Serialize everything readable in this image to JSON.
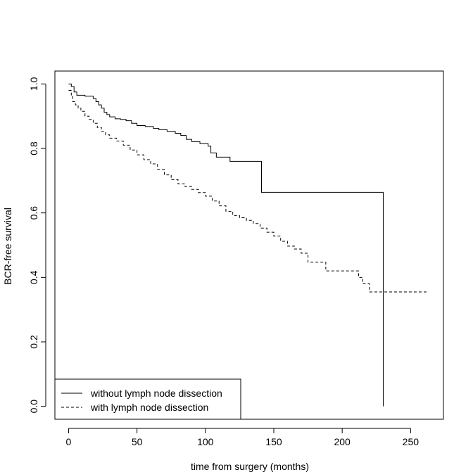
{
  "chart_data": {
    "type": "line",
    "chart_style": "step",
    "xlabel": "time from surgery (months)",
    "ylabel": "BCR-free survival",
    "xlim": [
      -10,
      274
    ],
    "ylim": [
      -0.04,
      1.04
    ],
    "x_ticks": [
      0,
      50,
      100,
      150,
      200,
      250
    ],
    "y_ticks": [
      0.0,
      0.2,
      0.4,
      0.6,
      0.8,
      1.0
    ],
    "x_tick_labels": [
      "0",
      "50",
      "100",
      "150",
      "200",
      "250"
    ],
    "y_tick_labels": [
      "0.0",
      "0.2",
      "0.4",
      "0.6",
      "0.8",
      "1.0"
    ],
    "grid": false,
    "legend_position": "bottom-left",
    "series": [
      {
        "name": "without lymph node dissection",
        "line_style": "solid",
        "points": [
          [
            0,
            1.0
          ],
          [
            2,
            0.992
          ],
          [
            4,
            0.975
          ],
          [
            6,
            0.965
          ],
          [
            12,
            0.962
          ],
          [
            18,
            0.955
          ],
          [
            20,
            0.945
          ],
          [
            22,
            0.935
          ],
          [
            24,
            0.925
          ],
          [
            26,
            0.912
          ],
          [
            28,
            0.905
          ],
          [
            30,
            0.898
          ],
          [
            34,
            0.892
          ],
          [
            38,
            0.89
          ],
          [
            42,
            0.886
          ],
          [
            46,
            0.878
          ],
          [
            50,
            0.871
          ],
          [
            56,
            0.868
          ],
          [
            62,
            0.862
          ],
          [
            66,
            0.858
          ],
          [
            72,
            0.853
          ],
          [
            78,
            0.847
          ],
          [
            82,
            0.84
          ],
          [
            86,
            0.828
          ],
          [
            90,
            0.821
          ],
          [
            96,
            0.815
          ],
          [
            102,
            0.807
          ],
          [
            104,
            0.786
          ],
          [
            108,
            0.773
          ],
          [
            118,
            0.76
          ],
          [
            141,
            0.664
          ],
          [
            230,
            0.664
          ],
          [
            230,
            0.0
          ]
        ]
      },
      {
        "name": "with lymph node dissection",
        "line_style": "dashed",
        "points": [
          [
            0,
            0.98
          ],
          [
            2,
            0.96
          ],
          [
            3,
            0.945
          ],
          [
            5,
            0.935
          ],
          [
            7,
            0.925
          ],
          [
            9,
            0.915
          ],
          [
            12,
            0.9
          ],
          [
            15,
            0.89
          ],
          [
            18,
            0.878
          ],
          [
            21,
            0.865
          ],
          [
            24,
            0.852
          ],
          [
            27,
            0.842
          ],
          [
            30,
            0.832
          ],
          [
            35,
            0.823
          ],
          [
            40,
            0.81
          ],
          [
            45,
            0.795
          ],
          [
            50,
            0.78
          ],
          [
            55,
            0.765
          ],
          [
            60,
            0.752
          ],
          [
            65,
            0.735
          ],
          [
            70,
            0.718
          ],
          [
            75,
            0.703
          ],
          [
            80,
            0.69
          ],
          [
            85,
            0.682
          ],
          [
            90,
            0.673
          ],
          [
            95,
            0.663
          ],
          [
            100,
            0.652
          ],
          [
            105,
            0.637
          ],
          [
            110,
            0.622
          ],
          [
            115,
            0.605
          ],
          [
            120,
            0.592
          ],
          [
            125,
            0.585
          ],
          [
            130,
            0.577
          ],
          [
            135,
            0.567
          ],
          [
            140,
            0.553
          ],
          [
            145,
            0.54
          ],
          [
            150,
            0.528
          ],
          [
            155,
            0.512
          ],
          [
            160,
            0.497
          ],
          [
            165,
            0.488
          ],
          [
            170,
            0.475
          ],
          [
            175,
            0.447
          ],
          [
            188,
            0.42
          ],
          [
            212,
            0.4
          ],
          [
            215,
            0.38
          ],
          [
            220,
            0.355
          ],
          [
            262,
            0.355
          ]
        ]
      }
    ]
  }
}
